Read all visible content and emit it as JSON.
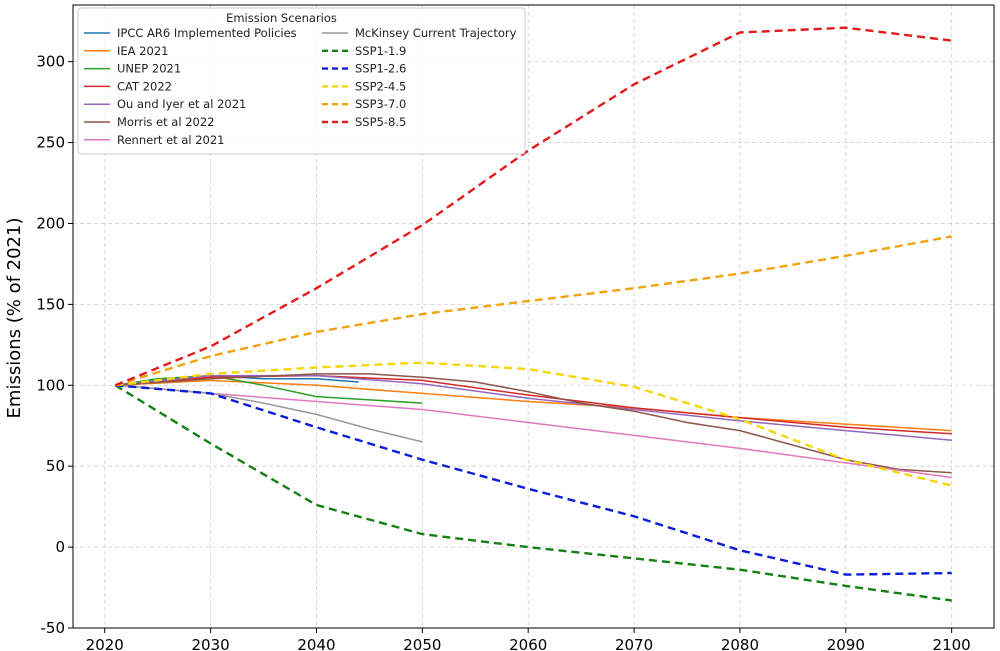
{
  "chart_data": {
    "type": "line",
    "title": "",
    "xlabel": "",
    "ylabel": "Emissions (% of 2021)",
    "xlim": [
      2017,
      2104
    ],
    "ylim": [
      -50,
      335
    ],
    "xticks": [
      2020,
      2030,
      2040,
      2050,
      2060,
      2070,
      2080,
      2090,
      2100
    ],
    "yticks": [
      -50,
      0,
      50,
      100,
      150,
      200,
      250,
      300
    ],
    "grid": true,
    "legend": {
      "title": "Emission Scenarios",
      "position": "top-left",
      "columns": 2
    },
    "series": [
      {
        "name": "IPCC AR6 Implemented Policies",
        "color": "#1f77b4",
        "dash": "solid",
        "x": [
          2021,
          2025,
          2030,
          2035,
          2040,
          2044
        ],
        "y": [
          100,
          103,
          106,
          104,
          104,
          102
        ]
      },
      {
        "name": "IEA 2021",
        "color": "#ff7f0e",
        "dash": "solid",
        "x": [
          2021,
          2030,
          2040,
          2050,
          2060,
          2070,
          2080,
          2090,
          2100
        ],
        "y": [
          100,
          103,
          100,
          95,
          90,
          86,
          80,
          76,
          72
        ]
      },
      {
        "name": "UNEP 2021",
        "color": "#2ca02c",
        "dash": "solid",
        "x": [
          2021,
          2025,
          2030,
          2035,
          2040,
          2050
        ],
        "y": [
          100,
          104,
          106,
          100,
          93,
          89
        ]
      },
      {
        "name": "CAT 2022",
        "color": "#d62728",
        "dash": "solid",
        "x": [
          2021,
          2030,
          2040,
          2050,
          2060,
          2070,
          2080,
          2090,
          2100
        ],
        "y": [
          100,
          105,
          106,
          103,
          94,
          86,
          80,
          74,
          70
        ]
      },
      {
        "name": "Ou and Iyer et al 2021",
        "color": "#9467bd",
        "dash": "solid",
        "x": [
          2021,
          2030,
          2040,
          2050,
          2060,
          2070,
          2080,
          2090,
          2100
        ],
        "y": [
          100,
          106,
          106,
          101,
          92,
          85,
          78,
          72,
          66
        ]
      },
      {
        "name": "Morris et al 2022",
        "color": "#8c564b",
        "dash": "solid",
        "x": [
          2021,
          2030,
          2040,
          2045,
          2050,
          2055,
          2060,
          2065,
          2070,
          2075,
          2080,
          2085,
          2090,
          2095,
          2100
        ],
        "y": [
          100,
          104,
          107,
          107,
          105,
          102,
          96,
          89,
          84,
          77,
          72,
          63,
          54,
          48,
          46
        ]
      },
      {
        "name": "Rennert et al 2021",
        "color": "#e377c2",
        "dash": "solid",
        "x": [
          2021,
          2030,
          2040,
          2050,
          2060,
          2070,
          2080,
          2090,
          2100
        ],
        "y": [
          100,
          95,
          90,
          85,
          77,
          69,
          61,
          52,
          43
        ]
      },
      {
        "name": "McKinsey Current Trajectory",
        "color": "#9a9a9a",
        "dash": "solid",
        "x": [
          2021,
          2025,
          2030,
          2035,
          2040,
          2045,
          2050
        ],
        "y": [
          100,
          98,
          95,
          89,
          82,
          73,
          65
        ]
      },
      {
        "name": "SSP1-1.9",
        "color": "#138013",
        "dash": "dashed",
        "x": [
          2021,
          2030,
          2040,
          2050,
          2060,
          2070,
          2080,
          2090,
          2100
        ],
        "y": [
          100,
          64,
          26,
          8,
          0,
          -7,
          -14,
          -24,
          -33
        ]
      },
      {
        "name": "SSP1-2.6",
        "color": "#0a1ed8",
        "dash": "dashed",
        "x": [
          2021,
          2030,
          2040,
          2050,
          2060,
          2070,
          2080,
          2090,
          2100
        ],
        "y": [
          100,
          95,
          74,
          54,
          36,
          19,
          -2,
          -17,
          -16
        ]
      },
      {
        "name": "SSP2-4.5",
        "color": "#f5d60a",
        "dash": "dashed",
        "x": [
          2021,
          2030,
          2040,
          2050,
          2060,
          2070,
          2080,
          2090,
          2100
        ],
        "y": [
          100,
          107,
          111,
          114,
          110,
          99,
          79,
          54,
          38
        ]
      },
      {
        "name": "SSP3-7.0",
        "color": "#f0a30f",
        "dash": "dashed",
        "x": [
          2021,
          2030,
          2040,
          2050,
          2060,
          2070,
          2080,
          2090,
          2100
        ],
        "y": [
          100,
          118,
          133,
          144,
          152,
          160,
          169,
          180,
          192
        ]
      },
      {
        "name": "SSP5-8.5",
        "color": "#e31b1b",
        "dash": "dashed",
        "x": [
          2021,
          2030,
          2040,
          2050,
          2060,
          2070,
          2080,
          2090,
          2100
        ],
        "y": [
          100,
          124,
          160,
          199,
          245,
          286,
          318,
          321,
          313
        ]
      }
    ]
  }
}
